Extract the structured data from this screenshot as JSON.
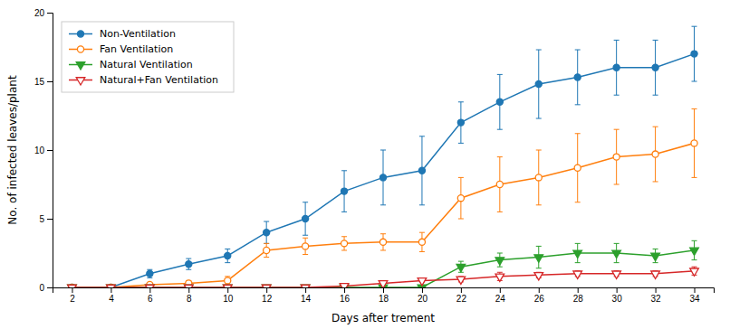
{
  "chart_data": {
    "type": "line",
    "xlabel": "Days after trement",
    "ylabel": "No. of infected leaves/plant",
    "x": [
      2,
      4,
      6,
      8,
      10,
      12,
      14,
      16,
      18,
      20,
      22,
      24,
      26,
      28,
      30,
      32,
      34
    ],
    "series": [
      {
        "name": "Non-Ventilation",
        "marker": "circle",
        "values": [
          0,
          0,
          1.0,
          1.7,
          2.3,
          4.0,
          5.0,
          7.0,
          8.0,
          8.5,
          12.0,
          13.5,
          14.8,
          15.3,
          16.0,
          16.0,
          17.0
        ],
        "errors": [
          0,
          0,
          0.3,
          0.4,
          0.5,
          0.8,
          1.2,
          1.5,
          2.0,
          2.5,
          1.5,
          2.0,
          2.5,
          2.0,
          2.0,
          2.0,
          2.0
        ]
      },
      {
        "name": "Fan Ventilation",
        "marker": "circle-open",
        "values": [
          0,
          0,
          0.2,
          0.3,
          0.5,
          2.7,
          3.0,
          3.2,
          3.3,
          3.3,
          6.5,
          7.5,
          8.0,
          8.7,
          9.5,
          9.7,
          10.5
        ],
        "errors": [
          0,
          0,
          0.1,
          0.2,
          0.3,
          0.5,
          0.6,
          0.5,
          0.6,
          0.7,
          1.5,
          2.0,
          2.0,
          2.5,
          2.0,
          2.0,
          2.5
        ]
      },
      {
        "name": "Natural Ventilation",
        "marker": "triangle-down",
        "values": [
          0,
          0,
          0.0,
          0.0,
          0.0,
          0.0,
          0.0,
          0.0,
          0.0,
          0.0,
          1.5,
          2.0,
          2.2,
          2.5,
          2.5,
          2.3,
          2.7
        ],
        "errors": [
          0,
          0,
          0.0,
          0.0,
          0.0,
          0.0,
          0.0,
          0.0,
          0.0,
          0.0,
          0.4,
          0.5,
          0.8,
          0.7,
          0.7,
          0.5,
          0.7
        ]
      },
      {
        "name": "Natural+Fan Ventilation",
        "marker": "triangle-down-open",
        "values": [
          0,
          0,
          0.0,
          0.0,
          0.0,
          0.0,
          0.0,
          0.1,
          0.3,
          0.5,
          0.6,
          0.8,
          0.9,
          1.0,
          1.0,
          1.0,
          1.2
        ],
        "errors": [
          0,
          0,
          0.0,
          0.0,
          0.0,
          0.0,
          0.0,
          0.05,
          0.1,
          0.1,
          0.2,
          0.3,
          0.2,
          0.2,
          0.2,
          0.2,
          0.3
        ]
      }
    ],
    "xlim": [
      1,
      35
    ],
    "xticks": [
      2,
      4,
      6,
      8,
      10,
      12,
      14,
      16,
      18,
      20,
      22,
      24,
      26,
      28,
      30,
      32,
      34
    ],
    "ylim": [
      0,
      20
    ],
    "yticks": [
      0,
      5,
      10,
      15,
      20
    ],
    "grid": false,
    "legend": "upper left"
  }
}
